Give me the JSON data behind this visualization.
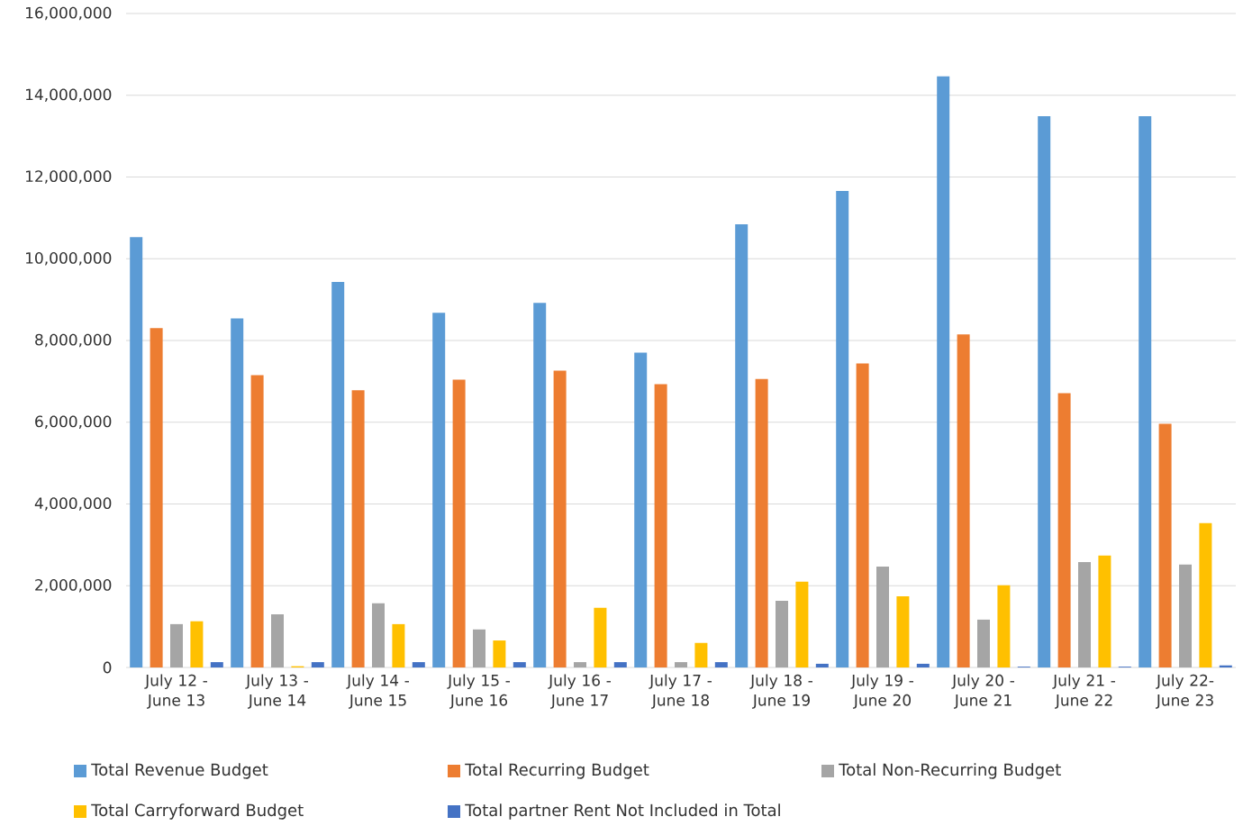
{
  "chart_data": {
    "type": "bar",
    "categories": [
      "July 12 - June 13",
      "July 13 - June 14",
      "July 14 - June 15",
      "July 15 - June 16",
      "July 16 - June 17",
      "July 17 - June 18",
      "July 18 - June 19",
      "July 19 - June 20",
      "July 20 - June 21",
      "July 21 - June 22",
      "July 22- June 23"
    ],
    "series": [
      {
        "name": "Total  Revenue Budget",
        "color": "#5b9bd5",
        "values": [
          10530000,
          8540000,
          9430000,
          8680000,
          8920000,
          7700000,
          10840000,
          11660000,
          14460000,
          13490000,
          13490000
        ]
      },
      {
        "name": "Total Recurring Budget",
        "color": "#ed7d31",
        "values": [
          8300000,
          7150000,
          6780000,
          7040000,
          7260000,
          6930000,
          7060000,
          7440000,
          8150000,
          6710000,
          5960000
        ]
      },
      {
        "name": "Total Non-Recurring Budget",
        "color": "#a5a5a5",
        "values": [
          1060000,
          1300000,
          1570000,
          930000,
          130000,
          130000,
          1630000,
          2470000,
          1170000,
          2580000,
          2520000
        ]
      },
      {
        "name": "Total Carryforward Budget",
        "color": "#ffc000",
        "values": [
          1130000,
          30000,
          1060000,
          660000,
          1460000,
          600000,
          2100000,
          1740000,
          2010000,
          2740000,
          3530000
        ]
      },
      {
        "name": "Total partner Rent Not Included in Total",
        "color": "#4472c4",
        "values": [
          130000,
          130000,
          130000,
          130000,
          130000,
          130000,
          90000,
          90000,
          20000,
          20000,
          50000
        ]
      }
    ],
    "ylim": [
      0,
      16000000
    ],
    "yticks": [
      {
        "value": 0,
        "label": "0"
      },
      {
        "value": 2000000,
        "label": "2,000,000"
      },
      {
        "value": 4000000,
        "label": "4,000,000"
      },
      {
        "value": 6000000,
        "label": "6,000,000"
      },
      {
        "value": 8000000,
        "label": "8,000,000"
      },
      {
        "value": 10000000,
        "label": "10,000,000"
      },
      {
        "value": 12000000,
        "label": "12,000,000"
      },
      {
        "value": 14000000,
        "label": "14,000,000"
      },
      {
        "value": 16000000,
        "label": "16,000,000"
      }
    ],
    "grid": "y",
    "legend": "bottom"
  }
}
